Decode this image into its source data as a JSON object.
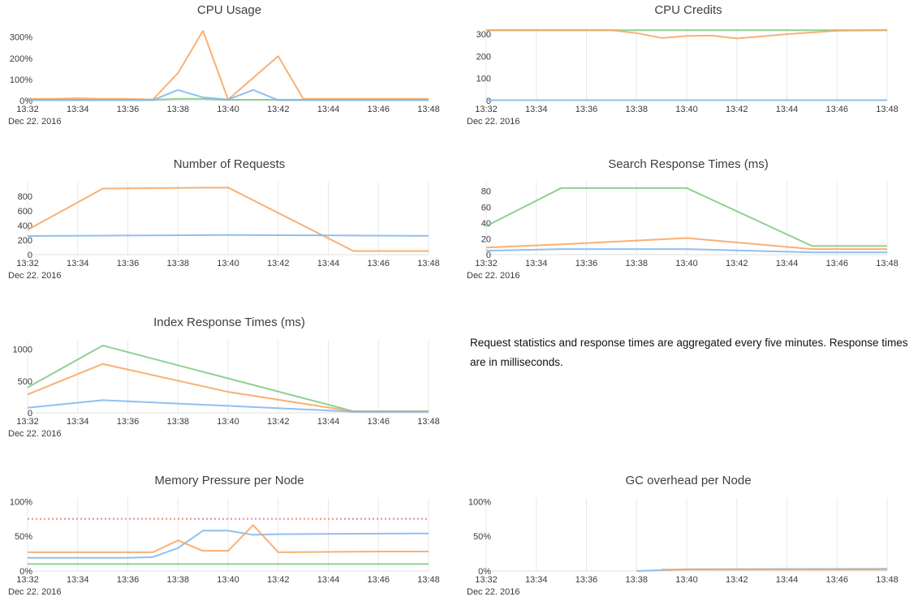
{
  "note": {
    "text": "Request statistics and response times are aggregated every five minutes. Response times are in milliseconds."
  },
  "axis": {
    "x_ticks": [
      "13:32",
      "13:34",
      "13:36",
      "13:38",
      "13:40",
      "13:42",
      "13:44",
      "13:46",
      "13:48"
    ],
    "date_label": "Dec 22. 2016"
  },
  "palette": {
    "blue": "#7cb5ec",
    "orange": "#f7a35c",
    "green": "#7dc87d",
    "red": "#ef8b8b",
    "grid": "#e8e8e8",
    "baseline": "#e0e0e0",
    "text": "#3a3a3a"
  },
  "chart_data": [
    {
      "type": "line",
      "title": "CPU Usage",
      "unit": "%",
      "grid": false,
      "ylim": [
        0,
        345
      ],
      "yticks": [
        0,
        100,
        200,
        300
      ],
      "x_range_minutes": [
        0,
        16
      ],
      "series": [
        {
          "name": "green",
          "color": "green",
          "points": [
            [
              0,
              4
            ],
            [
              5,
              4
            ],
            [
              6,
              8
            ],
            [
              7,
              8
            ],
            [
              8,
              4
            ],
            [
              16,
              4
            ]
          ]
        },
        {
          "name": "orange",
          "color": "orange",
          "points": [
            [
              0,
              8
            ],
            [
              1,
              8
            ],
            [
              2,
              11
            ],
            [
              3,
              8
            ],
            [
              4,
              8
            ],
            [
              5,
              5
            ],
            [
              6,
              130
            ],
            [
              7,
              330
            ],
            [
              8,
              5
            ],
            [
              10,
              210
            ],
            [
              11,
              8
            ],
            [
              16,
              8
            ]
          ]
        },
        {
          "name": "blue",
          "color": "blue",
          "points": [
            [
              0,
              2
            ],
            [
              5,
              2
            ],
            [
              6,
              50
            ],
            [
              7,
              15
            ],
            [
              8,
              5
            ],
            [
              9,
              50
            ],
            [
              10,
              2
            ],
            [
              16,
              2
            ]
          ]
        }
      ]
    },
    {
      "type": "line",
      "title": "CPU Credits",
      "unit": "",
      "grid": true,
      "ylim": [
        0,
        330
      ],
      "yticks": [
        0,
        100,
        200,
        300
      ],
      "x_range_minutes": [
        0,
        16
      ],
      "series": [
        {
          "name": "green",
          "color": "green",
          "points": [
            [
              0,
              318
            ],
            [
              16,
              318
            ]
          ]
        },
        {
          "name": "orange",
          "color": "orange",
          "points": [
            [
              0,
              318
            ],
            [
              5,
              318
            ],
            [
              6,
              305
            ],
            [
              7,
              283
            ],
            [
              8,
              292
            ],
            [
              9,
              294
            ],
            [
              10,
              281
            ],
            [
              11,
              290
            ],
            [
              12,
              300
            ],
            [
              13,
              308
            ],
            [
              14,
              316
            ],
            [
              16,
              318
            ]
          ]
        },
        {
          "name": "blue",
          "color": "blue",
          "points": [
            [
              0,
              2
            ],
            [
              16,
              2
            ]
          ]
        }
      ]
    },
    {
      "type": "line",
      "title": "Number of Requests",
      "unit": "",
      "grid": true,
      "ylim": [
        0,
        1000
      ],
      "yticks": [
        0,
        200,
        400,
        600,
        800
      ],
      "x_range_minutes": [
        0,
        16
      ],
      "series": [
        {
          "name": "orange",
          "color": "orange",
          "points": [
            [
              0,
              340
            ],
            [
              3,
              905
            ],
            [
              8,
              920
            ],
            [
              13,
              50
            ],
            [
              16,
              50
            ]
          ]
        },
        {
          "name": "blue",
          "color": "blue",
          "points": [
            [
              0,
              256
            ],
            [
              8,
              270
            ],
            [
              16,
              258
            ]
          ]
        }
      ]
    },
    {
      "type": "line",
      "title": "Search Response Times (ms)",
      "unit": "",
      "grid": true,
      "ylim": [
        0,
        92
      ],
      "yticks": [
        0,
        20,
        40,
        60,
        80
      ],
      "x_range_minutes": [
        0,
        16
      ],
      "series": [
        {
          "name": "green",
          "color": "green",
          "points": [
            [
              0,
              36
            ],
            [
              3,
              84
            ],
            [
              8,
              84
            ],
            [
              13,
              11
            ],
            [
              16,
              11
            ]
          ]
        },
        {
          "name": "orange",
          "color": "orange",
          "points": [
            [
              0,
              9
            ],
            [
              3,
              13
            ],
            [
              8,
              21
            ],
            [
              13,
              7
            ],
            [
              16,
              7
            ]
          ]
        },
        {
          "name": "blue",
          "color": "blue",
          "points": [
            [
              0,
              5
            ],
            [
              3,
              7
            ],
            [
              8,
              7
            ],
            [
              13,
              3
            ],
            [
              16,
              3
            ]
          ]
        }
      ]
    },
    {
      "type": "line",
      "title": "Index Response Times (ms)",
      "unit": "",
      "grid": true,
      "ylim": [
        0,
        1150
      ],
      "yticks": [
        0,
        500,
        1000
      ],
      "x_range_minutes": [
        0,
        16
      ],
      "series": [
        {
          "name": "green",
          "color": "green",
          "points": [
            [
              0,
              400
            ],
            [
              3,
              1060
            ],
            [
              13,
              25
            ],
            [
              16,
              25
            ]
          ]
        },
        {
          "name": "orange",
          "color": "orange",
          "points": [
            [
              0,
              290
            ],
            [
              3,
              770
            ],
            [
              8,
              330
            ],
            [
              13,
              22
            ],
            [
              16,
              22
            ]
          ]
        },
        {
          "name": "blue",
          "color": "blue",
          "points": [
            [
              0,
              80
            ],
            [
              3,
              200
            ],
            [
              8,
              110
            ],
            [
              13,
              18
            ],
            [
              16,
              18
            ]
          ]
        }
      ]
    },
    {
      "type": "line",
      "title": "Memory Pressure per Node",
      "unit": "%",
      "grid": true,
      "ylim": [
        0,
        105
      ],
      "yticks": [
        0,
        50,
        100
      ],
      "x_range_minutes": [
        0,
        16
      ],
      "threshold": {
        "value": 75,
        "color": "red"
      },
      "series": [
        {
          "name": "green",
          "color": "green",
          "points": [
            [
              0,
              10
            ],
            [
              16,
              10
            ]
          ]
        },
        {
          "name": "blue",
          "color": "blue",
          "points": [
            [
              0,
              19
            ],
            [
              4,
              19
            ],
            [
              5,
              20
            ],
            [
              6,
              33
            ],
            [
              7,
              58
            ],
            [
              8,
              58
            ],
            [
              9,
              52
            ],
            [
              10,
              53
            ],
            [
              16,
              54
            ]
          ]
        },
        {
          "name": "orange",
          "color": "orange",
          "points": [
            [
              0,
              27
            ],
            [
              5,
              27
            ],
            [
              6,
              44
            ],
            [
              7,
              29
            ],
            [
              8,
              29
            ],
            [
              9,
              66
            ],
            [
              10,
              27
            ],
            [
              14,
              28
            ],
            [
              16,
              28
            ]
          ]
        }
      ]
    },
    {
      "type": "line",
      "title": "GC overhead per Node",
      "unit": "%",
      "grid": true,
      "ylim": [
        0,
        105
      ],
      "yticks": [
        0,
        50,
        100
      ],
      "x_range_minutes": [
        0,
        16
      ],
      "series": [
        {
          "name": "blue",
          "color": "blue",
          "points": [
            [
              6,
              0
            ],
            [
              8,
              2.5
            ],
            [
              16,
              3
            ]
          ]
        },
        {
          "name": "orange",
          "color": "orange",
          "points": [
            [
              7,
              2
            ],
            [
              16,
              2
            ]
          ]
        }
      ]
    }
  ]
}
